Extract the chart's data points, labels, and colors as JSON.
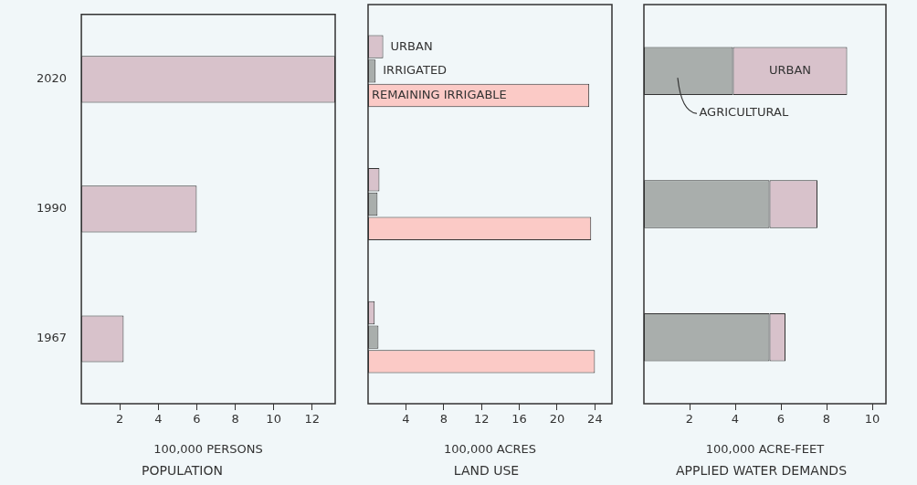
{
  "chart_data": [
    {
      "type": "bar",
      "orientation": "horizontal",
      "title": "POPULATION",
      "xlabel": "100,000 PERSONS",
      "categories": [
        "2020",
        "1990",
        "1967"
      ],
      "values": [
        13.2,
        6.0,
        2.2
      ],
      "color": "#d8c2cb",
      "xlim": [
        0,
        13.2
      ],
      "xticks": [
        2,
        4,
        6,
        8,
        10,
        12
      ]
    },
    {
      "type": "bar",
      "orientation": "horizontal",
      "title": "LAND USE",
      "xlabel": "100,000 ACRES",
      "categories": [
        "2020",
        "1990",
        "1967"
      ],
      "tick_labels": "x",
      "xlim": [
        0,
        25.8
      ],
      "xticks": [
        4,
        8,
        12,
        16,
        20,
        24
      ],
      "series": [
        {
          "name": "URBAN",
          "color": "#d8c2cb",
          "values": [
            1.6,
            1.2,
            0.7
          ]
        },
        {
          "name": "IRRIGATED",
          "color": "#a9aeac",
          "values": [
            0.8,
            1.0,
            1.1
          ]
        },
        {
          "name": "REMAINING IRRIGABLE",
          "color": "#fbcac6",
          "values": [
            23.4,
            23.6,
            24.0
          ]
        }
      ]
    },
    {
      "type": "bar",
      "orientation": "horizontal",
      "stacked": true,
      "title": "APPLIED WATER DEMANDS",
      "xlabel": "100,000 ACRE-FEET",
      "categories": [
        "2020",
        "1990",
        "1967"
      ],
      "tick_labels": "x",
      "xlim": [
        0,
        10.6
      ],
      "xticks": [
        2,
        4,
        6,
        8,
        10
      ],
      "series": [
        {
          "name": "AGRICULTURAL",
          "color": "#a9aeac",
          "values": [
            3.9,
            5.5,
            5.5
          ]
        },
        {
          "name": "URBAN",
          "color": "#d8c2cb",
          "values": [
            5.0,
            2.1,
            0.7
          ]
        }
      ]
    }
  ]
}
